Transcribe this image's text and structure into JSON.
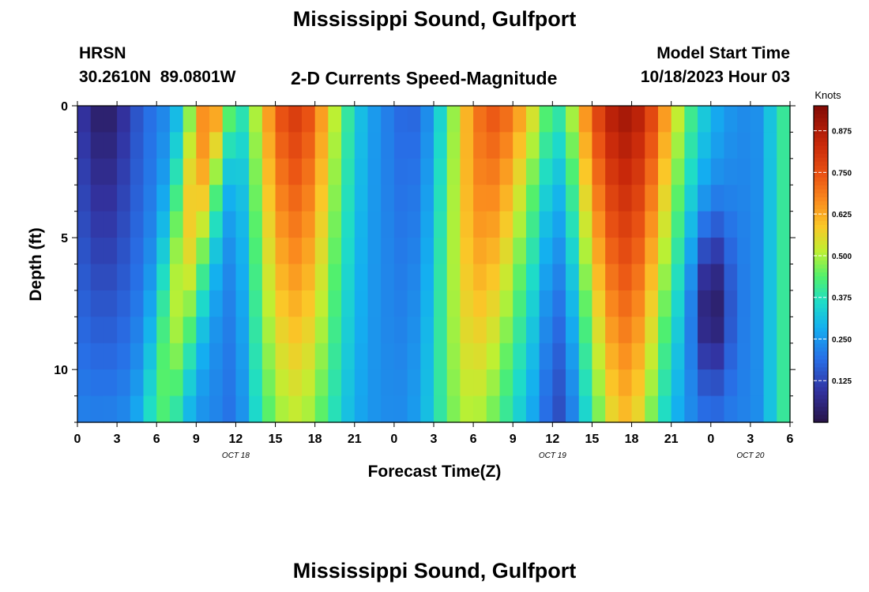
{
  "page": {
    "title": "Mississippi Sound, Gulfport",
    "bottom_title": "Mississippi Sound, Gulfport",
    "station_id": "HRSN",
    "station_coords": "30.2610N  89.0801W",
    "product": "2-D Currents Speed-Magnitude",
    "model_start_label": "Model Start Time",
    "model_start_value": "10/18/2023 Hour 03"
  },
  "chart_data": {
    "type": "heatmap",
    "title": "2-D Currents Speed-Magnitude",
    "xlabel": "Forecast Time(Z)",
    "ylabel": "Depth (ft)",
    "x_hours_range": [
      0,
      54
    ],
    "x_tick_hours": [
      0,
      3,
      6,
      9,
      12,
      15,
      18,
      21,
      24,
      27,
      30,
      33,
      36,
      39,
      42,
      45,
      48,
      51,
      54
    ],
    "x_tick_labels": [
      "0",
      "3",
      "6",
      "9",
      "12",
      "15",
      "18",
      "21",
      "0",
      "3",
      "6",
      "9",
      "12",
      "15",
      "18",
      "21",
      "0",
      "3",
      "6"
    ],
    "date_labels": [
      {
        "hour": 12,
        "label": "OCT 18"
      },
      {
        "hour": 36,
        "label": "OCT 19"
      },
      {
        "hour": 51,
        "label": "OCT 20"
      }
    ],
    "y_range_ft": [
      0,
      12
    ],
    "y_tick_values": [
      0,
      5,
      10
    ],
    "y_tick_labels": [
      "0",
      "5",
      "10"
    ],
    "depth_levels_ft": [
      0,
      1,
      2,
      3,
      4,
      5,
      6,
      7,
      8,
      9,
      10,
      11
    ],
    "colorbar": {
      "units": "Knots",
      "min": 0.0,
      "max": 0.95,
      "ticks": [
        0.125,
        0.25,
        0.375,
        0.5,
        0.625,
        0.75,
        0.875
      ],
      "tick_labels": [
        "0.125",
        "0.250",
        "0.375",
        "0.500",
        "0.625",
        "0.750",
        "0.875"
      ]
    },
    "current_events": [
      {
        "peak_hour": 8.5,
        "type": "strong_near_surface_then_tilted",
        "max_speed": 0.68
      },
      {
        "peak_hour": 16.5,
        "type": "strong_full_column",
        "max_speed": 0.8
      },
      {
        "peak_hour": 31.5,
        "type": "strong_full_column",
        "max_speed": 0.75
      },
      {
        "peak_hour": 41.5,
        "type": "strong_full_column",
        "max_speed": 0.9
      }
    ],
    "slack_events": [
      {
        "hour": 2,
        "min_speed": 0.03
      },
      {
        "hour": 12,
        "min_speed": 0.15
      },
      {
        "hour": 26,
        "min_speed": 0.12
      },
      {
        "hour": 36.5,
        "min_speed": 0.1
      },
      {
        "hour": 48,
        "min_speed": 0.03
      }
    ]
  }
}
